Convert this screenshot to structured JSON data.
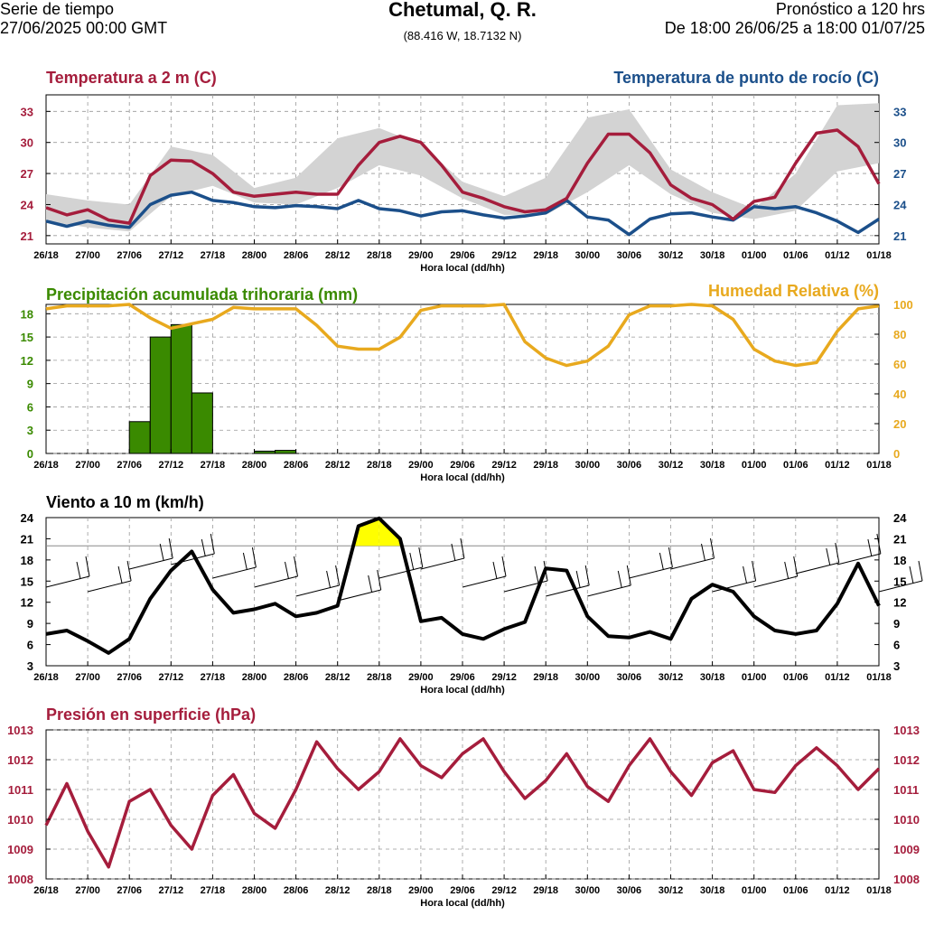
{
  "header": {
    "left_line1": "Serie de tiempo",
    "left_line2": "27/06/2025 00:00 GMT",
    "title": "Chetumal, Q. R.",
    "coords": "(88.416 W, 18.7132 N)",
    "right_line1": "Pronóstico a 120 hrs",
    "right_line2": "De 18:00 26/06/25 a 18:00 01/07/25"
  },
  "x_ticks": [
    "26/18",
    "27/00",
    "27/06",
    "27/12",
    "27/18",
    "28/00",
    "28/06",
    "28/12",
    "28/18",
    "29/00",
    "29/06",
    "29/12",
    "29/18",
    "30/00",
    "30/06",
    "30/12",
    "30/18",
    "01/00",
    "01/06",
    "01/12",
    "01/18"
  ],
  "x_label": "Hora local (dd/hh)",
  "colors": {
    "temp": "#a51d3c",
    "dew": "#1b4f8a",
    "precip": "#3a8a00",
    "rh": "#e8a91e",
    "wind": "#000000",
    "wind_fill": "#ffff00",
    "pressure": "#a51d3c",
    "band": "#d3d3d3",
    "grid": "#999999"
  },
  "chart_data": [
    {
      "type": "line",
      "id": "temp",
      "title_left": "Temperatura a 2 m (C)",
      "title_right": "Temperatura de punto de rocío (C)",
      "ylim": [
        20.2,
        34.6
      ],
      "yticks_left": [
        21,
        24,
        27,
        30,
        33
      ],
      "yticks_right": [
        21,
        24,
        27,
        30,
        33
      ],
      "x_hours": [
        0,
        6,
        12,
        18,
        24,
        30,
        36,
        42,
        48,
        54,
        60,
        66,
        72,
        78,
        84,
        90,
        96,
        102,
        108,
        114,
        120
      ],
      "series": [
        {
          "name": "Temperatura a 2 m (C)",
          "x": [
            0,
            3,
            6,
            9,
            12,
            15,
            18,
            21,
            24,
            27,
            30,
            33,
            36,
            39,
            42,
            45,
            48,
            51,
            54,
            57,
            60,
            63,
            66,
            69,
            72,
            75,
            78,
            81,
            84,
            87,
            90,
            93,
            96,
            99,
            102,
            105,
            108,
            111,
            114,
            117,
            120
          ],
          "values": [
            23.7,
            23.0,
            23.5,
            22.5,
            22.2,
            26.8,
            28.3,
            28.2,
            27.0,
            25.2,
            24.8,
            25.0,
            25.2,
            25.0,
            25.0,
            27.8,
            30.0,
            30.6,
            30.0,
            27.8,
            25.2,
            24.6,
            23.8,
            23.3,
            23.5,
            24.6,
            28.0,
            30.8,
            30.8,
            29.0,
            25.9,
            24.6,
            24.0,
            22.6,
            24.3,
            24.7,
            28.0,
            30.9,
            31.2,
            29.6,
            26.0
          ]
        },
        {
          "name": "Temperatura de punto de rocío (C)",
          "x": [
            0,
            3,
            6,
            9,
            12,
            15,
            18,
            21,
            24,
            27,
            30,
            33,
            36,
            39,
            42,
            45,
            48,
            51,
            54,
            57,
            60,
            63,
            66,
            69,
            72,
            75,
            78,
            81,
            84,
            87,
            90,
            93,
            96,
            99,
            102,
            105,
            108,
            111,
            114,
            117,
            120
          ],
          "values": [
            22.4,
            21.9,
            22.4,
            22.0,
            21.8,
            24.0,
            24.9,
            25.2,
            24.4,
            24.2,
            23.8,
            23.7,
            23.9,
            23.8,
            23.6,
            24.4,
            23.6,
            23.4,
            22.9,
            23.3,
            23.4,
            23.0,
            22.7,
            22.9,
            23.2,
            24.4,
            22.8,
            22.5,
            21.1,
            22.6,
            23.1,
            23.2,
            22.8,
            22.5,
            23.8,
            23.6,
            23.8,
            23.2,
            22.4,
            21.3,
            22.6
          ]
        }
      ],
      "band": {
        "x": [
          0,
          6,
          12,
          18,
          24,
          30,
          36,
          42,
          48,
          54,
          60,
          66,
          72,
          78,
          84,
          90,
          96,
          102,
          108,
          114,
          120
        ],
        "low": [
          22.4,
          21.8,
          21.4,
          24.8,
          25.8,
          24.2,
          24.0,
          25.6,
          27.8,
          26.8,
          24.6,
          23.0,
          23.0,
          25.2,
          27.8,
          25.0,
          23.2,
          22.6,
          23.4,
          27.2,
          28.0
        ],
        "high": [
          25.0,
          24.4,
          24.0,
          29.6,
          28.8,
          25.6,
          26.6,
          30.4,
          31.4,
          29.8,
          26.2,
          24.8,
          26.6,
          32.4,
          33.2,
          27.4,
          25.2,
          23.6,
          27.0,
          33.6,
          33.8
        ]
      }
    },
    {
      "type": "bar",
      "id": "precip_rh",
      "title_left": "Precipitación acumulada trihoraria (mm)",
      "title_right": "Humedad Relativa (%)",
      "ylim_left": [
        0,
        19.2
      ],
      "ylim_right": [
        0,
        100
      ],
      "yticks_left": [
        0,
        3,
        6,
        9,
        12,
        15,
        18
      ],
      "yticks_right": [
        0,
        20,
        40,
        60,
        80,
        100
      ],
      "bars": {
        "x_start": [
          12,
          15,
          18,
          21,
          30,
          33
        ],
        "values": [
          4.1,
          15.0,
          16.6,
          7.8,
          0.3,
          0.4
        ],
        "width_hours": 3
      },
      "series": [
        {
          "name": "Humedad Relativa (%)",
          "x": [
            0,
            3,
            6,
            9,
            12,
            15,
            18,
            21,
            24,
            27,
            30,
            33,
            36,
            39,
            42,
            45,
            48,
            51,
            54,
            57,
            60,
            63,
            66,
            69,
            72,
            75,
            78,
            81,
            84,
            87,
            90,
            93,
            96,
            99,
            102,
            105,
            108,
            111,
            114,
            117,
            120
          ],
          "values": [
            97,
            99,
            99,
            99,
            100,
            91,
            84,
            87,
            90,
            98,
            97,
            97,
            97,
            86,
            72,
            70,
            70,
            78,
            96,
            99,
            99,
            99,
            100,
            75,
            64,
            59,
            62,
            72,
            93,
            99,
            99,
            100,
            99,
            90,
            70,
            62,
            59,
            61,
            82,
            97,
            99
          ]
        }
      ]
    },
    {
      "type": "line",
      "id": "wind",
      "title_left": "Viento a 10 m (km/h)",
      "ylim": [
        3,
        24
      ],
      "yticks_left": [
        3,
        6,
        9,
        12,
        15,
        18,
        21,
        24
      ],
      "yticks_right": [
        3,
        6,
        9,
        12,
        15,
        18,
        21,
        24
      ],
      "threshold": 20,
      "series": [
        {
          "name": "Viento a 10 m (km/h)",
          "x": [
            0,
            3,
            6,
            9,
            12,
            15,
            18,
            21,
            24,
            27,
            30,
            33,
            36,
            39,
            42,
            45,
            48,
            51,
            54,
            57,
            60,
            63,
            66,
            69,
            72,
            75,
            78,
            81,
            84,
            87,
            90,
            93,
            96,
            99,
            102,
            105,
            108,
            111,
            114,
            117,
            120
          ],
          "values": [
            7.5,
            8.0,
            6.5,
            4.8,
            6.8,
            12.5,
            16.5,
            19.2,
            13.8,
            10.5,
            11.0,
            11.8,
            10.0,
            10.5,
            11.5,
            22.8,
            23.9,
            21.0,
            9.3,
            9.8,
            7.5,
            6.8,
            8.2,
            9.2,
            16.8,
            16.5,
            10.0,
            7.2,
            7.0,
            7.8,
            6.8,
            12.5,
            14.5,
            13.5,
            10.0,
            8.0,
            7.5,
            8.0,
            11.8,
            17.5,
            11.5
          ]
        }
      ]
    },
    {
      "type": "line",
      "id": "pressure",
      "title_left": "Presión en superficie (hPa)",
      "ylim": [
        1008,
        1013
      ],
      "yticks_left": [
        1008,
        1009,
        1010,
        1011,
        1012,
        1013
      ],
      "yticks_right": [
        1008,
        1009,
        1010,
        1011,
        1012,
        1013
      ],
      "series": [
        {
          "name": "Presión en superficie (hPa)",
          "x": [
            0,
            3,
            6,
            9,
            12,
            15,
            18,
            21,
            24,
            27,
            30,
            33,
            36,
            39,
            42,
            45,
            48,
            51,
            54,
            57,
            60,
            63,
            66,
            69,
            72,
            75,
            78,
            81,
            84,
            87,
            90,
            93,
            96,
            99,
            102,
            105,
            108,
            111,
            114,
            117,
            120
          ],
          "values": [
            1009.8,
            1011.2,
            1009.6,
            1008.4,
            1010.6,
            1011.0,
            1009.8,
            1009.0,
            1010.8,
            1011.5,
            1010.2,
            1009.7,
            1011.0,
            1012.6,
            1011.7,
            1011.0,
            1011.6,
            1012.7,
            1011.8,
            1011.4,
            1012.2,
            1012.7,
            1011.6,
            1010.7,
            1011.3,
            1012.2,
            1011.1,
            1010.6,
            1011.8,
            1012.7,
            1011.6,
            1010.8,
            1011.9,
            1012.3,
            1011.0,
            1010.9,
            1011.8,
            1012.4,
            1011.8,
            1011.0,
            1011.7
          ]
        }
      ]
    }
  ]
}
